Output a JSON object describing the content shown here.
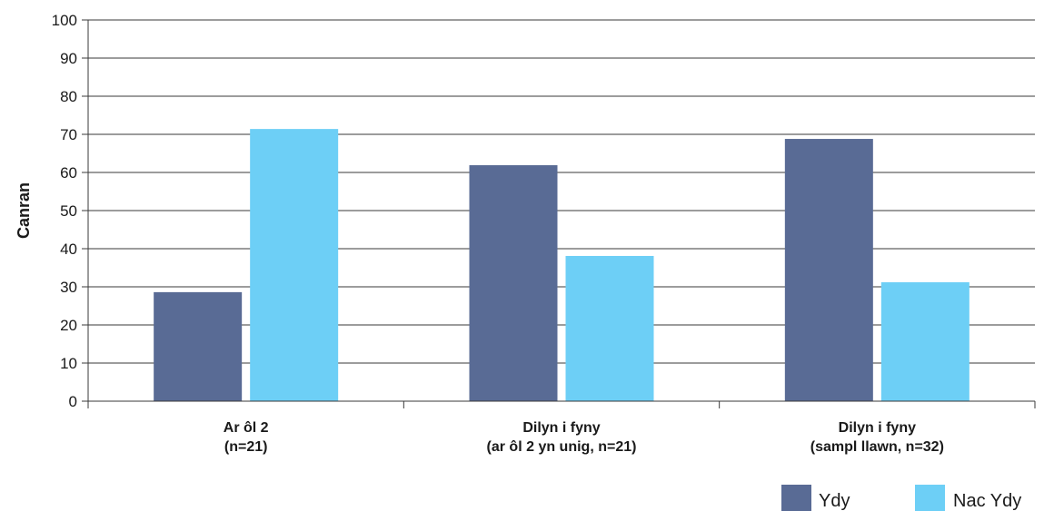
{
  "chart_data": {
    "type": "bar",
    "categories": [
      [
        "Ar ôl 2",
        "(n=21)"
      ],
      [
        "Dilyn i fyny",
        "(ar ôl 2 yn unig, n=21)"
      ],
      [
        "Dilyn i fyny",
        "(sampl llawn, n=32)"
      ]
    ],
    "series": [
      {
        "name": "Ydy",
        "color": "#596b95",
        "values": [
          28.6,
          61.9,
          68.8
        ]
      },
      {
        "name": "Nac Ydy",
        "color": "#6dcff6",
        "values": [
          71.4,
          38.1,
          31.2
        ]
      }
    ],
    "ylabel": "Canran",
    "xlabel": "",
    "ylim": [
      0,
      100
    ],
    "yticks": [
      0,
      10,
      20,
      30,
      40,
      50,
      60,
      70,
      80,
      90,
      100
    ],
    "grid": true,
    "legend": "bottom-right"
  }
}
